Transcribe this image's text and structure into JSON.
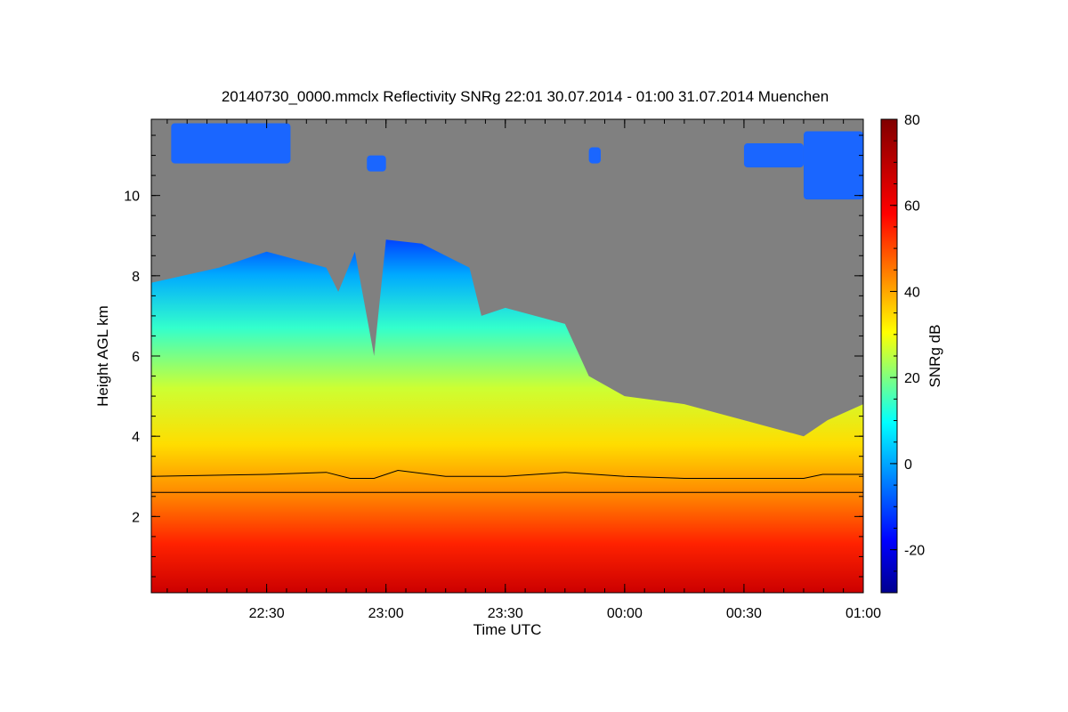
{
  "chart_data": {
    "type": "heatmap",
    "title": "20140730_0000.mmclx Reflectivity SNRg   22:01 30.07.2014 - 01:00 31.07.2014 Muenchen",
    "xlabel": "Time UTC",
    "ylabel": "Height AGL km",
    "colorbar_label": "SNRg dB",
    "x_range": [
      "22:01",
      "01:00"
    ],
    "y_range": [
      0.1,
      11.9
    ],
    "x_ticks": [
      "22:30",
      "23:00",
      "23:30",
      "00:00",
      "00:30",
      "01:00"
    ],
    "y_ticks": [
      2,
      4,
      6,
      8,
      10
    ],
    "colorbar_range": [
      -30,
      80
    ],
    "colorbar_ticks": [
      -20,
      0,
      20,
      40,
      60,
      80
    ],
    "colormap": [
      "#00008f",
      "#0000ff",
      "#00ffff",
      "#ffff00",
      "#ff0000",
      "#800000"
    ],
    "no_signal_color": "#808080",
    "reference_height_km": 2.6,
    "cloud_top_km": [
      [
        22.0,
        7.8
      ],
      [
        22.3,
        8.2
      ],
      [
        22.5,
        8.6
      ],
      [
        22.75,
        8.2
      ],
      [
        22.8,
        7.6
      ],
      [
        22.87,
        8.6
      ],
      [
        22.95,
        6.0
      ],
      [
        23.0,
        8.9
      ],
      [
        23.15,
        8.8
      ],
      [
        23.35,
        8.2
      ],
      [
        23.4,
        7.0
      ],
      [
        23.5,
        7.2
      ],
      [
        23.75,
        6.8
      ],
      [
        23.85,
        5.5
      ],
      [
        24.0,
        5.0
      ],
      [
        24.25,
        4.8
      ],
      [
        24.5,
        4.4
      ],
      [
        24.75,
        4.0
      ],
      [
        24.85,
        4.4
      ],
      [
        25.0,
        4.8
      ]
    ],
    "melting_layer_km": [
      [
        22.0,
        3.0
      ],
      [
        22.5,
        3.05
      ],
      [
        22.75,
        3.1
      ],
      [
        22.85,
        2.95
      ],
      [
        22.95,
        2.95
      ],
      [
        23.05,
        3.15
      ],
      [
        23.25,
        3.0
      ],
      [
        23.5,
        3.0
      ],
      [
        23.75,
        3.1
      ],
      [
        24.0,
        3.0
      ],
      [
        24.25,
        2.95
      ],
      [
        24.5,
        2.95
      ],
      [
        24.75,
        2.95
      ],
      [
        24.83,
        3.05
      ],
      [
        25.0,
        3.05
      ]
    ],
    "cirrus_patches": [
      [
        22.1,
        22.6,
        10.8,
        11.8
      ],
      [
        22.92,
        23.0,
        10.6,
        11.0
      ],
      [
        23.85,
        23.9,
        10.8,
        11.2
      ],
      [
        24.5,
        24.75,
        10.7,
        11.3
      ],
      [
        24.75,
        25.0,
        9.9,
        11.6
      ]
    ]
  }
}
